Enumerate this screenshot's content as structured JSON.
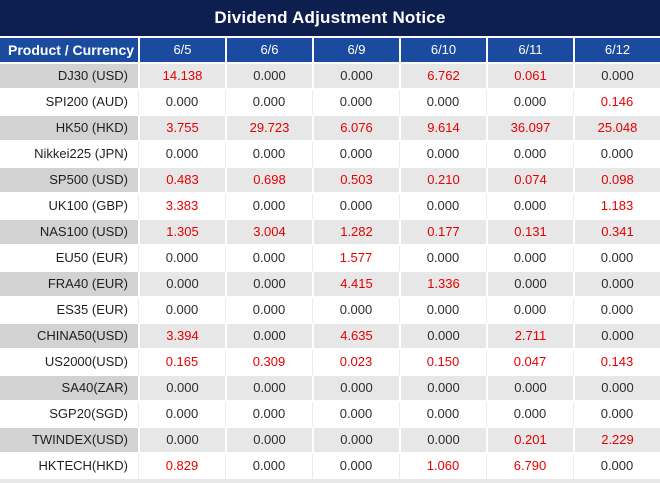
{
  "title": "Dividend Adjustment Notice",
  "colors": {
    "title_bg": "#0d1f4e",
    "header_bg": "#1b4b9f",
    "row_gray_label": "#d2d2d2",
    "row_gray_value": "#e7e7e7",
    "value_red": "#e60000",
    "value_black": "#2d2d2d",
    "text_dark": "#1f1f1f",
    "page_bg": "#ffffff"
  },
  "table": {
    "header": [
      "Product / Currency",
      "6/5",
      "6/6",
      "6/9",
      "6/10",
      "6/11",
      "6/12"
    ],
    "rows": [
      {
        "product": "DJ30 (USD)",
        "values": [
          "14.138",
          "0.000",
          "0.000",
          "6.762",
          "0.061",
          "0.000"
        ]
      },
      {
        "product": "SPI200 (AUD)",
        "values": [
          "0.000",
          "0.000",
          "0.000",
          "0.000",
          "0.000",
          "0.146"
        ]
      },
      {
        "product": "HK50 (HKD)",
        "values": [
          "3.755",
          "29.723",
          "6.076",
          "9.614",
          "36.097",
          "25.048"
        ]
      },
      {
        "product": "Nikkei225 (JPN)",
        "values": [
          "0.000",
          "0.000",
          "0.000",
          "0.000",
          "0.000",
          "0.000"
        ]
      },
      {
        "product": "SP500 (USD)",
        "values": [
          "0.483",
          "0.698",
          "0.503",
          "0.210",
          "0.074",
          "0.098"
        ]
      },
      {
        "product": "UK100 (GBP)",
        "values": [
          "3.383",
          "0.000",
          "0.000",
          "0.000",
          "0.000",
          "1.183"
        ]
      },
      {
        "product": "NAS100 (USD)",
        "values": [
          "1.305",
          "3.004",
          "1.282",
          "0.177",
          "0.131",
          "0.341"
        ]
      },
      {
        "product": "EU50 (EUR)",
        "values": [
          "0.000",
          "0.000",
          "1.577",
          "0.000",
          "0.000",
          "0.000"
        ]
      },
      {
        "product": "FRA40 (EUR)",
        "values": [
          "0.000",
          "0.000",
          "4.415",
          "1.336",
          "0.000",
          "0.000"
        ]
      },
      {
        "product": "ES35 (EUR)",
        "values": [
          "0.000",
          "0.000",
          "0.000",
          "0.000",
          "0.000",
          "0.000"
        ]
      },
      {
        "product": "CHINA50(USD)",
        "values": [
          "3.394",
          "0.000",
          "4.635",
          "0.000",
          "2.711",
          "0.000"
        ]
      },
      {
        "product": "US2000(USD)",
        "values": [
          "0.165",
          "0.309",
          "0.023",
          "0.150",
          "0.047",
          "0.143"
        ]
      },
      {
        "product": "SA40(ZAR)",
        "values": [
          "0.000",
          "0.000",
          "0.000",
          "0.000",
          "0.000",
          "0.000"
        ]
      },
      {
        "product": "SGP20(SGD)",
        "values": [
          "0.000",
          "0.000",
          "0.000",
          "0.000",
          "0.000",
          "0.000"
        ]
      },
      {
        "product": "TWINDEX(USD)",
        "values": [
          "0.000",
          "0.000",
          "0.000",
          "0.000",
          "0.201",
          "2.229"
        ]
      },
      {
        "product": "HKTECH(HKD)",
        "values": [
          "0.829",
          "0.000",
          "0.000",
          "1.060",
          "6.790",
          "0.000"
        ]
      }
    ]
  }
}
